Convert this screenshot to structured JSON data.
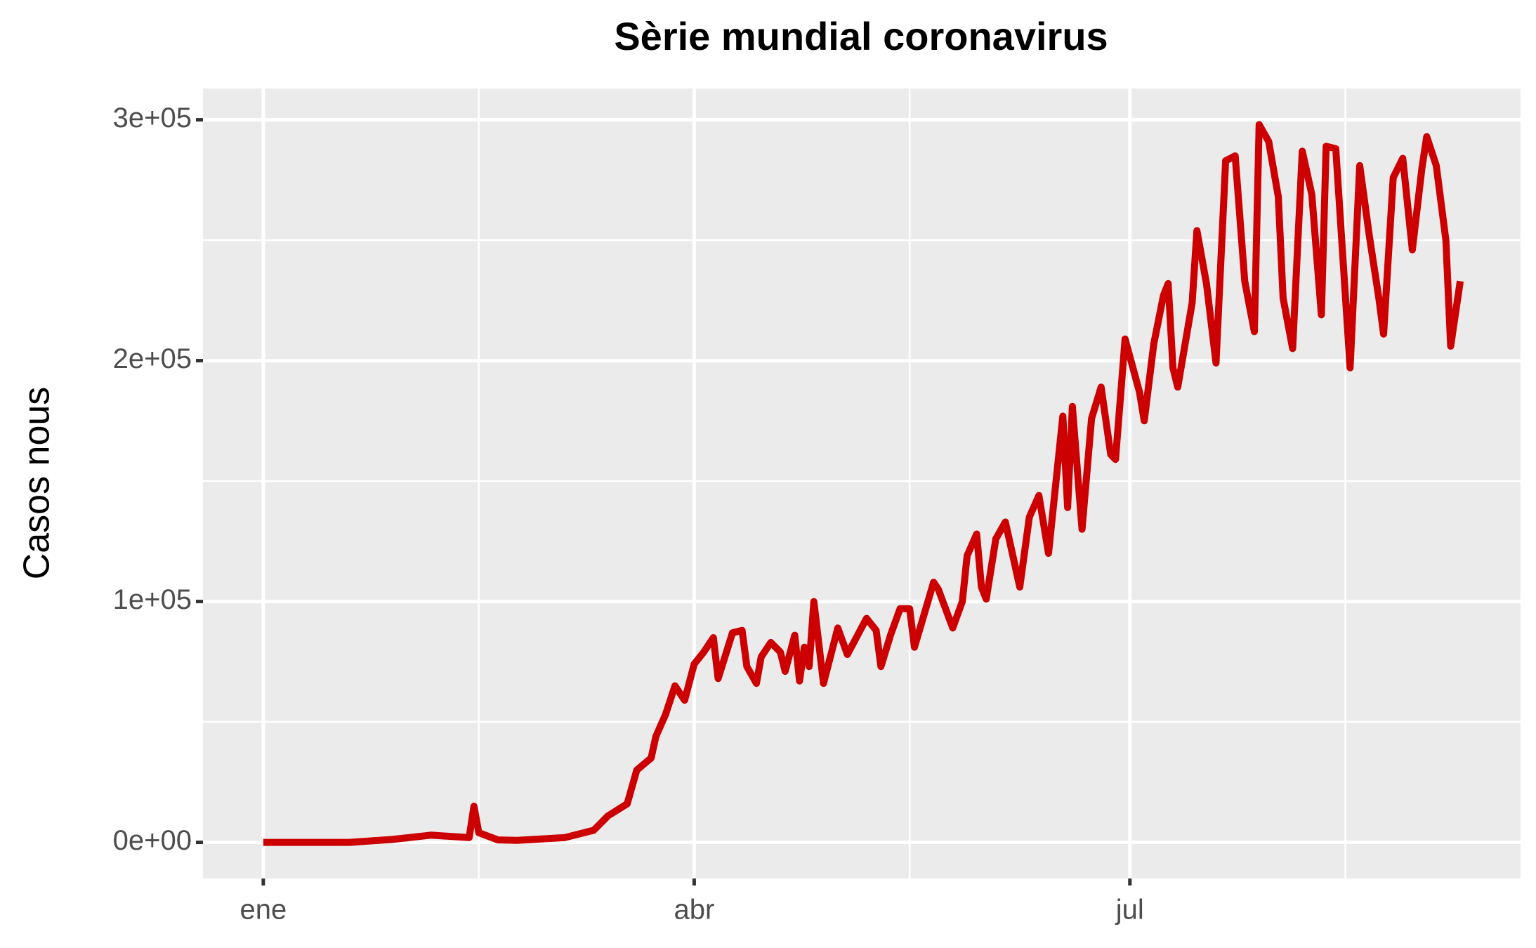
{
  "chart_data": {
    "type": "line",
    "title": "Sèrie mundial coronavirus",
    "y_label": "Casos nous",
    "x": [
      0,
      18,
      27,
      35,
      43,
      44,
      45,
      49,
      53,
      63,
      69,
      72,
      76,
      78,
      81,
      82,
      84,
      86,
      88,
      90,
      92,
      94,
      95,
      98,
      100,
      101,
      103,
      104,
      106,
      108,
      109,
      111,
      112,
      113,
      114,
      115,
      117,
      120,
      122,
      126,
      128,
      129,
      131,
      133,
      135,
      136,
      140,
      141,
      144,
      146,
      147,
      149,
      150,
      151,
      153,
      155,
      158,
      160,
      162,
      164,
      167,
      168,
      169,
      171,
      173,
      175,
      177,
      178,
      180,
      183,
      184,
      186,
      188,
      189,
      190,
      191,
      194,
      195,
      197,
      199,
      201,
      203,
      205,
      207,
      208,
      210,
      212,
      213,
      215,
      217,
      219,
      221,
      222,
      224,
      227,
      229,
      231,
      233,
      234,
      236,
      238,
      240,
      242,
      243,
      245,
      247,
      248,
      250
    ],
    "series": [
      {
        "name": "Casos nous",
        "color": "#cc0000",
        "values": [
          0,
          0,
          1200,
          3000,
          2000,
          15000,
          4000,
          1000,
          800,
          2000,
          5000,
          11000,
          16000,
          30000,
          35000,
          44000,
          53000,
          65000,
          59000,
          74000,
          79000,
          85000,
          68000,
          87000,
          88000,
          73000,
          66000,
          77000,
          83000,
          79000,
          71000,
          86000,
          67000,
          81000,
          73000,
          100000,
          66000,
          89000,
          78000,
          93000,
          88000,
          73000,
          86000,
          97000,
          97000,
          81000,
          108000,
          105000,
          89000,
          100000,
          119000,
          128000,
          106000,
          101000,
          126000,
          133000,
          106000,
          135000,
          144000,
          120000,
          177000,
          139000,
          181000,
          130000,
          176000,
          189000,
          161000,
          159000,
          209000,
          187000,
          175000,
          207000,
          227000,
          232000,
          197000,
          189000,
          224000,
          254000,
          232000,
          199000,
          283000,
          285000,
          233000,
          212000,
          298000,
          291000,
          268000,
          226000,
          205000,
          287000,
          269000,
          219000,
          289000,
          288000,
          197000,
          281000,
          252000,
          226000,
          211000,
          276000,
          284000,
          246000,
          280000,
          293000,
          281000,
          250000,
          206000,
          233000
        ]
      }
    ],
    "xlim": [
      -12.6,
      262.6
    ],
    "xticks": [
      {
        "value": 0,
        "label": "ene"
      },
      {
        "value": 90,
        "label": "abr"
      },
      {
        "value": 181,
        "label": "jul"
      }
    ],
    "xminor": [
      45,
      135,
      226
    ],
    "ylim": [
      -15000,
      313000
    ],
    "yticks": [
      {
        "value": 0,
        "label": "0e+00"
      },
      {
        "value": 100000,
        "label": "1e+05"
      },
      {
        "value": 200000,
        "label": "2e+05"
      },
      {
        "value": 300000,
        "label": "3e+05"
      }
    ],
    "yminor": [
      50000,
      150000,
      250000
    ],
    "grid": true
  }
}
